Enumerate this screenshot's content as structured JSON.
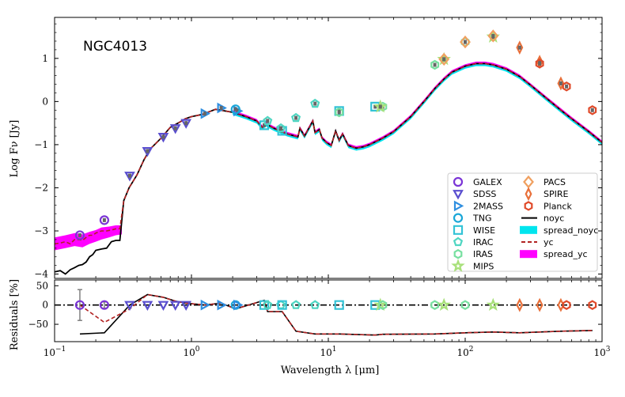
{
  "chart_data": {
    "type": "scatter",
    "title": "NGC4013",
    "xlabel": "Wavelength λ [μm]",
    "ylabel_top": "Log Fν [Jy]",
    "ylabel_bottom": "Residuals [%]",
    "xscale": "log",
    "xlim": [
      0.1,
      1000
    ],
    "ylim_top": [
      -4.1,
      1.95
    ],
    "ylim_bottom": [
      -95,
      65
    ],
    "x_tick_labels": [
      "10^-1",
      "10^0",
      "10^1",
      "10^2",
      "10^3"
    ],
    "y_tick_labels_top": [
      "1",
      "0",
      "−1",
      "−2",
      "−3",
      "−4"
    ],
    "y_tick_labels_bottom": [
      "50",
      "0",
      "−50"
    ],
    "legend_position": "lower-right",
    "legend": [
      {
        "label": "GALEX",
        "marker": "circle",
        "color": "#7b35d6"
      },
      {
        "label": "SDSS",
        "marker": "triangle-down",
        "color": "#5a4fcf"
      },
      {
        "label": "2MASS",
        "marker": "triangle-right",
        "color": "#2e8ee0"
      },
      {
        "label": "TNG",
        "marker": "circle",
        "color": "#1aa7d8"
      },
      {
        "label": "WISE",
        "marker": "square",
        "color": "#33c3d6"
      },
      {
        "label": "IRAC",
        "marker": "pentagon",
        "color": "#4fd6c2"
      },
      {
        "label": "IRAS",
        "marker": "hexagon",
        "color": "#77e0a0"
      },
      {
        "label": "MIPS",
        "marker": "star",
        "color": "#a8e07a"
      },
      {
        "label": "PACS",
        "marker": "diamond",
        "color": "#f0a060"
      },
      {
        "label": "SPIRE",
        "marker": "thin-diamond",
        "color": "#e8703a"
      },
      {
        "label": "Planck",
        "marker": "hexagon",
        "color": "#e04a2a"
      },
      {
        "label": "noyc",
        "marker": "line",
        "color": "#000000"
      },
      {
        "label": "spread_noyc",
        "marker": "patch",
        "color": "#00e5ee"
      },
      {
        "label": "yc",
        "marker": "dashed-line",
        "color": "#b22222"
      },
      {
        "label": "spread_yc",
        "marker": "patch",
        "color": "#ff00ff"
      }
    ],
    "model_noyc": {
      "x": [
        0.1,
        0.11,
        0.12,
        0.13,
        0.14,
        0.15,
        0.16,
        0.17,
        0.18,
        0.19,
        0.2,
        0.22,
        0.24,
        0.26,
        0.28,
        0.3,
        0.32,
        0.35,
        0.4,
        0.45,
        0.5,
        0.6,
        0.7,
        0.8,
        0.9,
        1.0,
        1.2,
        1.5,
        2.0,
        2.5,
        3.0,
        3.3,
        3.5,
        4.0,
        5.0,
        6.0,
        6.2,
        6.7,
        7.7,
        8.0,
        8.6,
        9.0,
        9.7,
        10.5,
        11.3,
        12.0,
        12.7,
        14.0,
        16.0,
        18.0,
        20.0,
        25.0,
        30.0,
        40.0,
        50.0,
        60.0,
        70.0,
        80.0,
        100.0,
        120.0,
        140.0,
        160.0,
        200.0,
        250.0,
        300.0,
        400.0,
        500.0,
        600.0,
        800.0,
        1000.0
      ],
      "logF": [
        -3.95,
        -3.92,
        -4.0,
        -3.9,
        -3.85,
        -3.8,
        -3.78,
        -3.72,
        -3.6,
        -3.55,
        -3.45,
        -3.42,
        -3.4,
        -3.25,
        -3.22,
        -3.22,
        -2.3,
        -2.0,
        -1.7,
        -1.35,
        -1.1,
        -0.85,
        -0.6,
        -0.5,
        -0.4,
        -0.35,
        -0.3,
        -0.18,
        -0.25,
        -0.35,
        -0.45,
        -0.6,
        -0.52,
        -0.62,
        -0.75,
        -0.82,
        -0.62,
        -0.8,
        -0.45,
        -0.72,
        -0.65,
        -0.85,
        -0.95,
        -1.02,
        -0.68,
        -0.9,
        -0.75,
        -1.02,
        -1.08,
        -1.05,
        -1.0,
        -0.85,
        -0.7,
        -0.35,
        0.0,
        0.3,
        0.52,
        0.68,
        0.82,
        0.88,
        0.88,
        0.85,
        0.75,
        0.58,
        0.38,
        0.05,
        -0.2,
        -0.4,
        -0.7,
        -0.95
      ]
    },
    "model_yc": {
      "x": [
        0.1,
        0.11,
        0.12,
        0.13,
        0.14,
        0.15,
        0.16,
        0.17,
        0.18,
        0.19,
        0.2,
        0.22,
        0.24,
        0.26,
        0.28,
        0.3,
        0.32,
        0.35,
        0.4
      ],
      "logF": [
        -3.3,
        -3.28,
        -3.25,
        -3.3,
        -3.2,
        -3.2,
        -3.22,
        -3.15,
        -3.1,
        -3.1,
        -3.05,
        -3.0,
        -3.0,
        -2.98,
        -2.95,
        -2.95,
        -2.3,
        -2.0,
        -1.7
      ]
    },
    "spread_yc_band": {
      "x": [
        0.1,
        0.12,
        0.14,
        0.16,
        0.18,
        0.2,
        0.22,
        0.25,
        0.28,
        0.31
      ],
      "upper": [
        -3.15,
        -3.1,
        -3.05,
        -3.08,
        -3.02,
        -2.98,
        -2.92,
        -2.9,
        -2.87,
        -2.87
      ],
      "lower": [
        -3.45,
        -3.4,
        -3.35,
        -3.38,
        -3.3,
        -3.25,
        -3.2,
        -3.15,
        -3.1,
        -3.08
      ]
    },
    "observations": [
      {
        "instrument": "GALEX",
        "x": [
          0.153,
          0.231
        ],
        "logF": [
          -3.1,
          -2.75
        ]
      },
      {
        "instrument": "SDSS",
        "x": [
          0.354,
          0.477,
          0.623,
          0.763,
          0.913
        ],
        "logF": [
          -1.72,
          -1.15,
          -0.82,
          -0.62,
          -0.5
        ]
      },
      {
        "instrument": "2MASS",
        "x": [
          1.25,
          1.65,
          2.17
        ],
        "logF": [
          -0.28,
          -0.15,
          -0.22
        ]
      },
      {
        "instrument": "TNG",
        "x": [
          2.1
        ],
        "logF": [
          -0.18
        ]
      },
      {
        "instrument": "WISE",
        "x": [
          3.4,
          4.6,
          12.0,
          22.0
        ],
        "logF": [
          -0.55,
          -0.68,
          -0.22,
          -0.12
        ]
      },
      {
        "instrument": "IRAC",
        "x": [
          3.6,
          4.5,
          5.8,
          8.0
        ],
        "logF": [
          -0.45,
          -0.62,
          -0.38,
          -0.05
        ]
      },
      {
        "instrument": "IRAS",
        "x": [
          12.0,
          25.0,
          60.0,
          100.0
        ],
        "logF": [
          -0.25,
          -0.12,
          0.85,
          1.38
        ]
      },
      {
        "instrument": "MIPS",
        "x": [
          24.0,
          70.0,
          160.0
        ],
        "logF": [
          -0.12,
          0.98,
          1.5
        ]
      },
      {
        "instrument": "PACS",
        "x": [
          70.0,
          100.0,
          160.0
        ],
        "logF": [
          0.98,
          1.38,
          1.52
        ]
      },
      {
        "instrument": "SPIRE",
        "x": [
          250.0,
          350.0,
          500.0
        ],
        "logF": [
          1.25,
          0.92,
          0.42
        ]
      },
      {
        "instrument": "Planck",
        "x": [
          350.0,
          550.0,
          850.0
        ],
        "logF": [
          0.88,
          0.35,
          -0.2
        ]
      }
    ],
    "residual_points": [
      {
        "x": 0.153,
        "r": 0,
        "err": 40
      },
      {
        "x": 0.231,
        "r": 0,
        "err": 8
      },
      {
        "x": 0.354,
        "r": 0
      },
      {
        "x": 0.477,
        "r": 0
      },
      {
        "x": 0.623,
        "r": 0
      },
      {
        "x": 0.763,
        "r": 0
      },
      {
        "x": 0.913,
        "r": 0
      },
      {
        "x": 1.25,
        "r": 0
      },
      {
        "x": 1.65,
        "r": 0
      },
      {
        "x": 2.1,
        "r": 0
      },
      {
        "x": 2.17,
        "r": 0
      },
      {
        "x": 3.4,
        "r": 0
      },
      {
        "x": 3.6,
        "r": 0
      },
      {
        "x": 4.5,
        "r": 0
      },
      {
        "x": 4.6,
        "r": 0
      },
      {
        "x": 5.8,
        "r": 0
      },
      {
        "x": 8.0,
        "r": 0
      },
      {
        "x": 12.0,
        "r": 0
      },
      {
        "x": 22.0,
        "r": 0
      },
      {
        "x": 24.0,
        "r": 0
      },
      {
        "x": 25.0,
        "r": 0
      },
      {
        "x": 60.0,
        "r": 0
      },
      {
        "x": 70.0,
        "r": 0
      },
      {
        "x": 100.0,
        "r": 0
      },
      {
        "x": 160.0,
        "r": 0
      },
      {
        "x": 250.0,
        "r": 0
      },
      {
        "x": 350.0,
        "r": 0
      },
      {
        "x": 500.0,
        "r": 0
      },
      {
        "x": 550.0,
        "r": 0
      },
      {
        "x": 850.0,
        "r": 0
      }
    ],
    "residual_noyc": {
      "x": [
        0.153,
        0.231,
        0.354,
        0.477,
        0.623,
        0.763,
        0.913,
        1.25,
        1.65,
        2.1,
        3.4,
        3.6,
        4.6,
        5.8,
        8.0,
        12.0,
        22.0,
        25.0,
        60.0,
        100.0,
        160.0,
        250.0,
        350.0,
        500.0,
        850.0
      ],
      "r": [
        -75,
        -72,
        0,
        27,
        20,
        10,
        5,
        0,
        5,
        -10,
        12,
        -17,
        -17,
        -68,
        -75,
        -75,
        -78,
        -76,
        -75,
        -72,
        -70,
        -72,
        -70,
        -68,
        -66
      ]
    },
    "residual_yc": {
      "x": [
        0.153,
        0.231,
        0.354,
        0.477,
        0.623,
        0.763,
        0.913,
        1.25,
        1.65,
        2.1,
        3.4,
        3.6,
        4.6,
        5.8,
        8.0,
        12.0,
        22.0,
        25.0,
        60.0,
        100.0,
        160.0,
        250.0,
        350.0,
        500.0,
        850.0
      ],
      "r": [
        0,
        -45,
        -10,
        27,
        20,
        10,
        5,
        0,
        5,
        -10,
        12,
        -17,
        -17,
        -68,
        -75,
        -75,
        -78,
        -76,
        -75,
        -72,
        -70,
        -72,
        -70,
        -68,
        -66
      ]
    }
  }
}
